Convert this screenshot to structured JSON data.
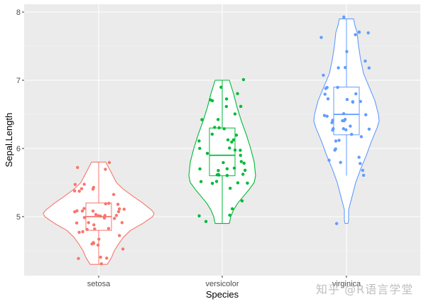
{
  "chart_data": {
    "type": "violin",
    "title": "",
    "xlabel": "Species",
    "ylabel": "Sepal.Length",
    "categories": [
      "setosa",
      "versicolor",
      "virginica"
    ],
    "yticks": [
      5,
      6,
      7,
      8
    ],
    "ylim": [
      4.2,
      8.1
    ],
    "grid": true,
    "legend": "none",
    "overlays": [
      "boxplot",
      "jitter points"
    ],
    "series": [
      {
        "name": "setosa",
        "color": "#F8766D",
        "min": 4.3,
        "q1": 4.8,
        "median": 5.0,
        "q3": 5.2,
        "max": 5.8,
        "points": [
          5.1,
          4.9,
          4.7,
          4.6,
          5.0,
          5.4,
          4.6,
          5.0,
          4.4,
          4.9,
          5.4,
          4.8,
          4.8,
          4.3,
          5.8,
          5.7,
          5.4,
          5.1,
          5.7,
          5.1,
          5.4,
          5.1,
          4.6,
          5.1,
          4.8,
          5.0,
          5.0,
          5.2,
          5.2,
          4.7,
          4.8,
          5.4,
          5.2,
          5.5,
          4.9,
          5.0,
          5.5,
          4.9,
          4.4,
          5.1,
          5.0,
          4.5,
          4.4,
          5.0,
          5.1,
          4.8,
          5.1,
          4.6,
          5.3,
          5.0
        ]
      },
      {
        "name": "versicolor",
        "color": "#00BA38",
        "min": 4.9,
        "q1": 5.6,
        "median": 5.9,
        "q3": 6.3,
        "max": 7.0,
        "points": [
          7.0,
          6.4,
          6.9,
          5.5,
          6.5,
          5.7,
          6.3,
          4.9,
          6.6,
          5.2,
          5.0,
          5.9,
          6.0,
          6.1,
          5.6,
          6.7,
          5.6,
          5.8,
          6.2,
          5.6,
          5.9,
          6.1,
          6.3,
          6.1,
          6.4,
          6.6,
          6.8,
          6.7,
          6.0,
          5.7,
          5.5,
          5.5,
          5.8,
          6.0,
          5.4,
          6.0,
          6.7,
          6.3,
          5.6,
          5.5,
          5.5,
          6.1,
          5.8,
          5.0,
          5.6,
          5.7,
          5.7,
          6.2,
          5.1,
          5.7
        ]
      },
      {
        "name": "virginica",
        "color": "#619CFF",
        "min": 5.6,
        "q1": 6.2,
        "median": 6.5,
        "q3": 6.9,
        "max": 7.9,
        "points": [
          6.3,
          5.8,
          7.1,
          6.3,
          6.5,
          7.6,
          4.9,
          7.3,
          6.7,
          7.2,
          6.5,
          6.4,
          6.8,
          5.7,
          5.8,
          6.4,
          6.5,
          7.7,
          7.7,
          6.0,
          6.9,
          5.6,
          7.7,
          6.3,
          6.7,
          7.2,
          6.2,
          6.1,
          6.4,
          7.2,
          7.4,
          7.9,
          6.4,
          6.3,
          6.1,
          7.7,
          6.3,
          6.4,
          6.0,
          6.9,
          6.7,
          6.9,
          5.8,
          6.8,
          6.7,
          6.7,
          6.3,
          6.5,
          6.2,
          5.9
        ]
      }
    ]
  },
  "labels": {
    "x_title": "Species",
    "y_title": "Sepal.Length",
    "watermark": "知乎 @R语言学堂"
  }
}
